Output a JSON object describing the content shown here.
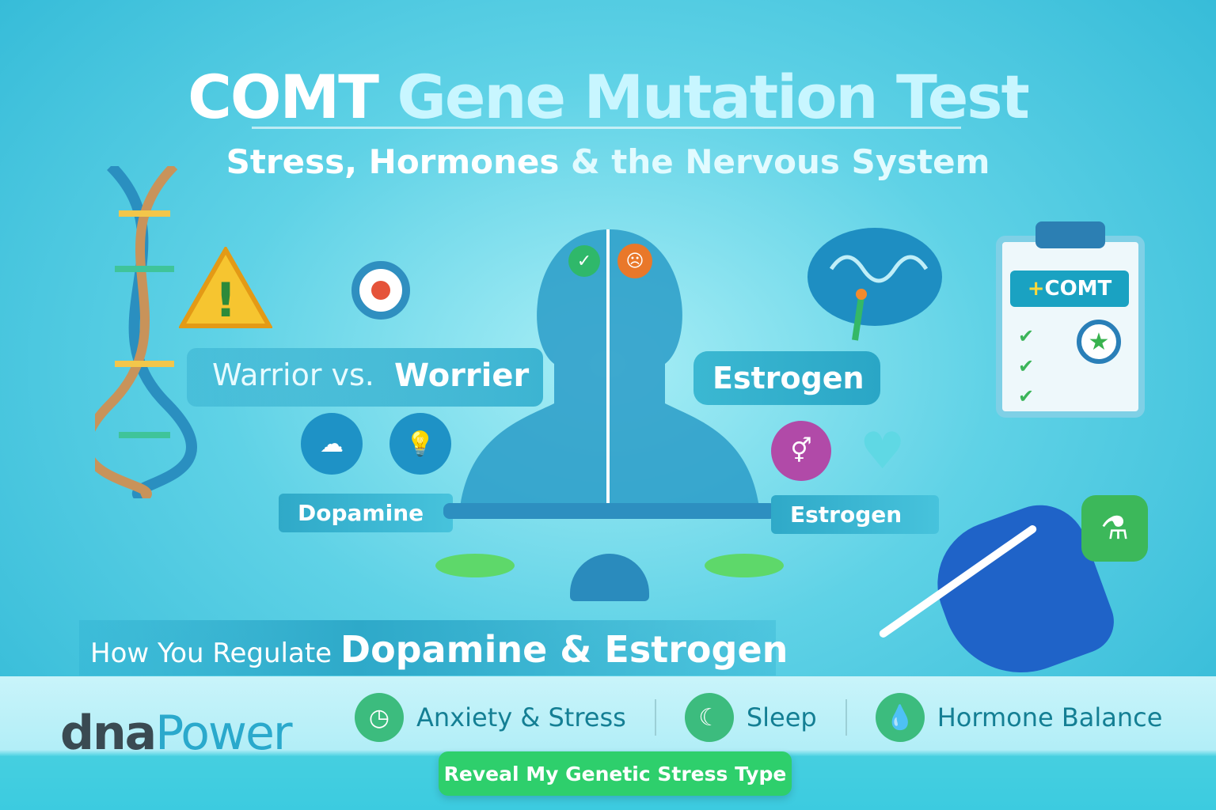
{
  "header": {
    "title_a": "COMT",
    "title_b": "Gene Mutation Test",
    "subtitle_a": "Stress, Hormones",
    "subtitle_b": "& the Nervous System"
  },
  "left": {
    "warrior": "Warrior vs.",
    "worrier": "Worrier",
    "dopamine": "Dopamine"
  },
  "right": {
    "estrogen_pill": "Estrogen",
    "estrogen_banner": "Estrogen"
  },
  "clipboard": {
    "label_plus": "+",
    "label": "COMT"
  },
  "tagline": {
    "a": "How You Regulate",
    "b": "Dopamine & Estrogen"
  },
  "logo": {
    "a": "dna",
    "b": "Power"
  },
  "features": [
    {
      "icon": "clock-icon",
      "label": "Anxiety & Stress"
    },
    {
      "icon": "moon-icon",
      "label": "Sleep"
    },
    {
      "icon": "droplet-icon",
      "label": "Hormone Balance"
    }
  ],
  "cta": {
    "label": "Reveal My Genetic Stress Type"
  },
  "colors": {
    "accent_green": "#2ecf6c",
    "teal": "#1aa2c2",
    "background": "#5fd2e6"
  }
}
